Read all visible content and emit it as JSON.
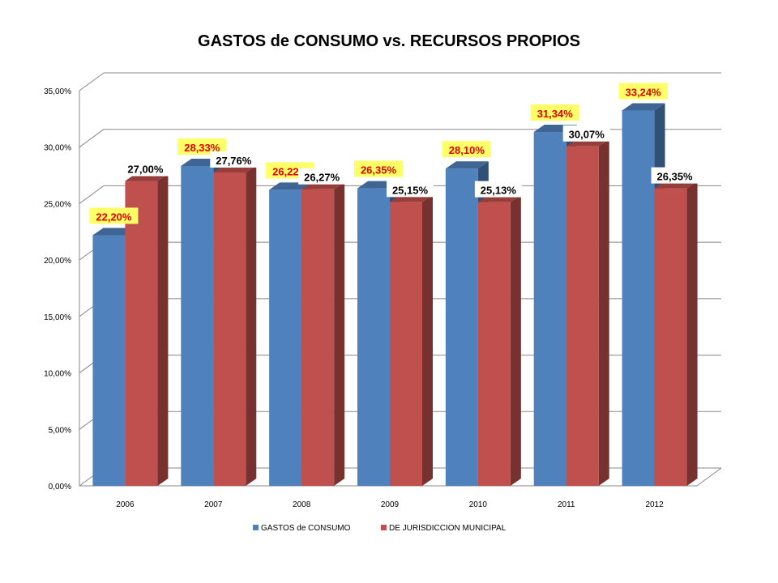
{
  "chart_data": {
    "type": "bar",
    "title": "GASTOS de CONSUMO vs. RECURSOS PROPIOS",
    "categories": [
      "2006",
      "2007",
      "2008",
      "2009",
      "2010",
      "2011",
      "2012"
    ],
    "series": [
      {
        "name": "GASTOS de CONSUMO",
        "values": [
          22.2,
          28.33,
          26.22,
          26.35,
          28.1,
          31.34,
          33.24
        ],
        "labels": [
          "22,20%",
          "28,33%",
          "26,22%",
          "26,35%",
          "28,10%",
          "31,34%",
          "33,24%"
        ],
        "color": "#4F81BD",
        "label_background": "#FFFF66",
        "label_color": "#E00000"
      },
      {
        "name": "DE JURISDICCION MUNICIPAL",
        "values": [
          27.0,
          27.76,
          26.27,
          25.15,
          25.13,
          30.07,
          26.35
        ],
        "labels": [
          "27,00%",
          "27,76%",
          "26,27%",
          "25,15%",
          "25,13%",
          "30,07%",
          "26,35%"
        ],
        "color": "#C0504D",
        "label_background": "#FFFFFF",
        "label_color": "#000000"
      }
    ],
    "y_ticks": [
      0,
      5,
      10,
      15,
      20,
      25,
      30,
      35
    ],
    "y_tick_labels": [
      "0,00%",
      "5,00%",
      "10,00%",
      "15,00%",
      "20,00%",
      "25,00%",
      "30,00%",
      "35,00%"
    ],
    "ylim": [
      0,
      35
    ],
    "grid": true,
    "three_d": true,
    "legend_position": "bottom"
  }
}
